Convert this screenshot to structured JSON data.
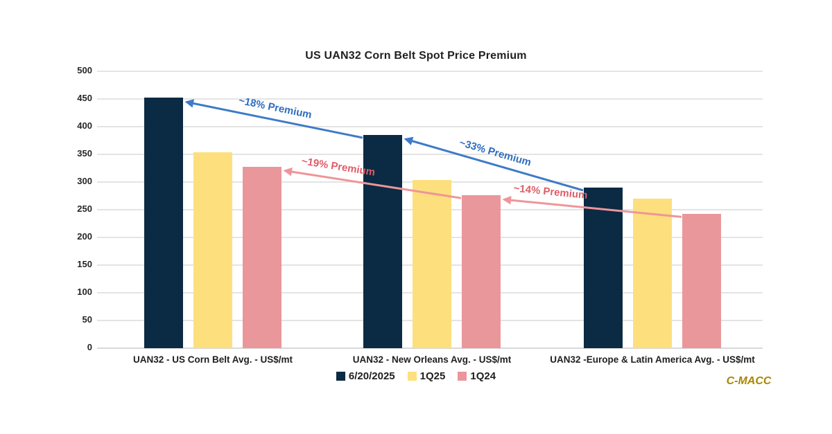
{
  "chart_data": {
    "type": "bar",
    "title": "US UAN32 Corn Belt Spot Price Premium",
    "categories": [
      "UAN32 - US Corn Belt Avg. - US$/mt",
      "UAN32 - New Orleans Avg. - US$/mt",
      "UAN32 -Europe & Latin America Avg. - US$/mt"
    ],
    "series": [
      {
        "name": "6/20/2025",
        "color": "#0b2a43",
        "values": [
          452,
          385,
          290
        ]
      },
      {
        "name": "1Q25",
        "color": "#fddf7e",
        "values": [
          354,
          304,
          270
        ]
      },
      {
        "name": "1Q24",
        "color": "#e9979b",
        "values": [
          328,
          276,
          242
        ]
      }
    ],
    "ylim": [
      0,
      500
    ],
    "yticks": [
      0,
      50,
      100,
      150,
      200,
      250,
      300,
      350,
      400,
      450,
      500
    ],
    "grid": "horizontal",
    "legend_position": "bottom-center",
    "annotations": [
      {
        "label": "~18% Premium",
        "line_color": "#3e7ac8",
        "text_color": "#2e6dbe",
        "series": 0,
        "from_group": 1,
        "to_group": 0
      },
      {
        "label": "~33% Premium",
        "line_color": "#3e7ac8",
        "text_color": "#2e6dbe",
        "series": 0,
        "from_group": 2,
        "to_group": 1
      },
      {
        "label": "~19% Premium",
        "line_color": "#ee9599",
        "text_color": "#e05c66",
        "series": 2,
        "from_group": 1,
        "to_group": 0
      },
      {
        "label": "~14% Premium",
        "line_color": "#ee9599",
        "text_color": "#e05c66",
        "series": 2,
        "from_group": 2,
        "to_group": 1
      }
    ]
  },
  "branding": {
    "label": "C-MACC"
  }
}
